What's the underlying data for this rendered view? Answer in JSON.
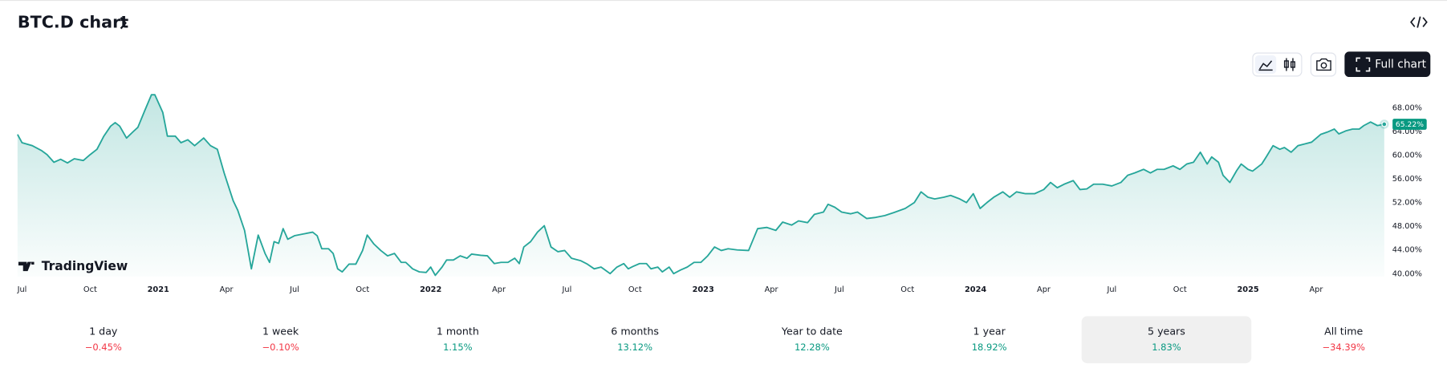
{
  "header": {
    "title": "BTC.D chart"
  },
  "toolbar": {
    "full_chart": "Full chart"
  },
  "logo": "TradingView",
  "chart_data": {
    "type": "area",
    "color": "#26a69a",
    "x": [
      -0.2,
      0,
      0.45,
      0.85,
      1.1,
      1.4,
      1.7,
      2.0,
      2.3,
      2.7,
      3.0,
      3.3,
      3.6,
      3.9,
      4.1,
      4.3,
      4.6,
      4.9,
      5.1,
      5.4,
      5.7,
      5.85,
      6.2,
      6.4,
      6.75,
      7.0,
      7.3,
      7.6,
      8.0,
      8.3,
      8.6,
      8.9,
      9.3,
      9.5,
      9.8,
      10.1,
      10.4,
      10.7,
      10.9,
      11.1,
      11.3,
      11.5,
      11.7,
      12.0,
      12.4,
      12.8,
      13.0,
      13.2,
      13.5,
      13.7,
      13.9,
      14.1,
      14.4,
      14.7,
      15.0,
      15.2,
      15.5,
      15.8,
      16.1,
      16.4,
      16.7,
      16.9,
      17.2,
      17.5,
      17.8,
      18.0,
      18.2,
      18.5,
      18.7,
      19.0,
      19.3,
      19.6,
      19.8,
      20.2,
      20.5,
      20.8,
      21.1,
      21.4,
      21.7,
      21.9,
      22.1,
      22.4,
      22.7,
      23.0,
      23.3,
      23.6,
      23.9,
      24.2,
      24.6,
      24.9,
      25.2,
      25.5,
      25.9,
      26.2,
      26.5,
      26.7,
      26.9,
      27.2,
      27.5,
      27.7,
      28.0,
      28.2,
      28.5,
      28.7,
      29.0,
      29.3,
      29.6,
      29.9,
      30.2,
      30.5,
      30.8,
      31.1,
      31.5,
      32.0,
      32.4,
      32.8,
      33.2,
      33.5,
      33.9,
      34.2,
      34.6,
      34.9,
      35.3,
      35.5,
      35.8,
      36.1,
      36.5,
      36.8,
      37.2,
      37.6,
      38.0,
      38.4,
      38.9,
      39.3,
      39.6,
      39.9,
      40.2,
      40.6,
      40.9,
      41.3,
      41.6,
      41.9,
      42.2,
      42.5,
      42.8,
      43.2,
      43.5,
      43.8,
      44.2,
      44.6,
      45.0,
      45.3,
      45.6,
      45.9,
      46.3,
      46.6,
      46.9,
      47.2,
      47.6,
      48.0,
      48.4,
      48.7,
      49.0,
      49.4,
      49.7,
      50.0,
      50.3,
      50.7,
      51.0,
      51.3,
      51.6,
      51.9,
      52.2,
      52.4,
      52.7,
      52.9,
      53.2,
      53.5,
      53.7,
      54.0,
      54.2,
      54.6,
      54.8,
      55.1,
      55.4,
      55.6,
      55.9,
      56.2,
      56.5,
      56.8,
      57.2,
      57.5,
      57.8,
      58.0,
      58.3,
      58.6,
      58.9,
      59.1,
      59.4,
      59.7,
      60.0
    ],
    "values": [
      63.5,
      62.1,
      61.6,
      60.8,
      60.1,
      58.8,
      59.3,
      58.7,
      59.4,
      59.1,
      60.1,
      61.0,
      63.2,
      64.9,
      65.5,
      64.9,
      62.9,
      64.0,
      64.7,
      67.5,
      70.2,
      70.2,
      67.2,
      63.2,
      63.2,
      62.1,
      62.6,
      61.6,
      62.9,
      61.6,
      61.0,
      57.0,
      52.3,
      50.7,
      47.3,
      40.8,
      46.5,
      43.4,
      41.9,
      45.4,
      45.1,
      47.6,
      45.8,
      46.4,
      46.7,
      47.0,
      46.4,
      44.2,
      44.2,
      43.4,
      40.8,
      40.3,
      41.6,
      41.6,
      43.9,
      46.5,
      45.0,
      43.9,
      43.0,
      43.4,
      41.9,
      41.9,
      40.8,
      40.3,
      40.2,
      41.1,
      39.7,
      41.1,
      42.3,
      42.3,
      43.0,
      42.6,
      43.3,
      43.1,
      43.0,
      41.7,
      41.9,
      41.9,
      42.6,
      41.7,
      44.5,
      45.4,
      47.0,
      48.1,
      44.5,
      43.7,
      43.9,
      42.6,
      42.2,
      41.6,
      40.8,
      41.1,
      40.0,
      41.1,
      41.7,
      40.8,
      41.2,
      41.7,
      41.7,
      40.8,
      41.1,
      40.3,
      41.1,
      40.0,
      40.6,
      41.1,
      41.9,
      41.9,
      43.0,
      44.5,
      43.9,
      44.2,
      44.0,
      43.9,
      47.6,
      47.8,
      47.3,
      48.7,
      48.2,
      48.9,
      48.6,
      50.0,
      50.4,
      51.7,
      51.2,
      50.4,
      50.1,
      50.4,
      49.3,
      49.5,
      49.8,
      50.3,
      51.0,
      52.0,
      53.8,
      52.9,
      52.6,
      52.9,
      53.2,
      52.6,
      52.0,
      53.5,
      51.0,
      52.0,
      52.9,
      53.8,
      52.9,
      53.8,
      53.5,
      53.5,
      54.2,
      55.4,
      54.5,
      55.1,
      55.7,
      54.2,
      54.3,
      55.1,
      55.1,
      54.8,
      55.4,
      56.6,
      57.0,
      57.6,
      57.0,
      57.6,
      57.6,
      58.2,
      57.6,
      58.5,
      58.8,
      60.5,
      58.5,
      59.7,
      58.8,
      56.6,
      55.4,
      57.4,
      58.5,
      57.6,
      57.3,
      58.5,
      59.7,
      61.6,
      61.0,
      61.3,
      60.5,
      61.6,
      61.9,
      62.2,
      63.5,
      63.9,
      64.4,
      63.6,
      64.1,
      64.4,
      64.4,
      65.0,
      65.6,
      65.0,
      65.22
    ],
    "last_label": "65.22%",
    "xlim": [
      -0.2,
      60
    ],
    "xticks": [
      {
        "value": 0,
        "label": "Jul"
      },
      {
        "value": 3,
        "label": "Oct"
      },
      {
        "value": 6,
        "label": "2021"
      },
      {
        "value": 9,
        "label": "Apr"
      },
      {
        "value": 12,
        "label": "Jul"
      },
      {
        "value": 15,
        "label": "Oct"
      },
      {
        "value": 18,
        "label": "2022"
      },
      {
        "value": 21,
        "label": "Apr"
      },
      {
        "value": 24,
        "label": "Jul"
      },
      {
        "value": 27,
        "label": "Oct"
      },
      {
        "value": 30,
        "label": "2023"
      },
      {
        "value": 33,
        "label": "Apr"
      },
      {
        "value": 36,
        "label": "Jul"
      },
      {
        "value": 39,
        "label": "Oct"
      },
      {
        "value": 42,
        "label": "2024"
      },
      {
        "value": 45,
        "label": "Apr"
      },
      {
        "value": 48,
        "label": "Jul"
      },
      {
        "value": 51,
        "label": "Oct"
      },
      {
        "value": 54,
        "label": "2025"
      },
      {
        "value": 57,
        "label": "Apr"
      }
    ],
    "ylim": [
      39.5,
      72.5
    ],
    "yticks": [
      {
        "value": 40,
        "label": "40.00%"
      },
      {
        "value": 44,
        "label": "44.00%"
      },
      {
        "value": 48,
        "label": "48.00%"
      },
      {
        "value": 52,
        "label": "52.00%"
      },
      {
        "value": 56,
        "label": "56.00%"
      },
      {
        "value": 60,
        "label": "60.00%"
      },
      {
        "value": 64,
        "label": "64.00%"
      },
      {
        "value": 68,
        "label": "68.00%"
      }
    ],
    "grid": false
  },
  "periods": {
    "selected": 6,
    "items": [
      {
        "label": "1 day",
        "change": "−0.45%"
      },
      {
        "label": "1 week",
        "change": "−0.10%"
      },
      {
        "label": "1 month",
        "change": "1.15%"
      },
      {
        "label": "6 months",
        "change": "13.12%"
      },
      {
        "label": "Year to date",
        "change": "12.28%"
      },
      {
        "label": "1 year",
        "change": "18.92%"
      },
      {
        "label": "5 years",
        "change": "1.83%"
      },
      {
        "label": "All time",
        "change": "−34.39%"
      }
    ]
  }
}
